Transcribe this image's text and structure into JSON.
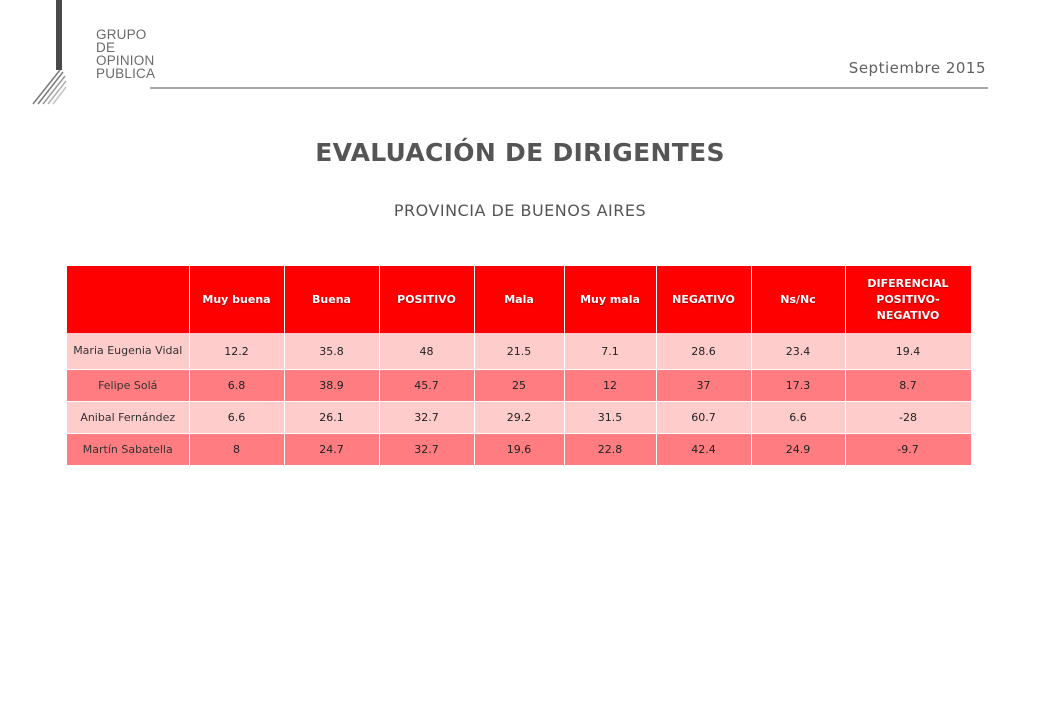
{
  "logo": {
    "lines": [
      "GRUPO",
      "DE",
      "OPINION",
      "PUBLICA"
    ]
  },
  "date": "Septiembre 2015",
  "title": "EVALUACIÓN DE DIRIGENTES",
  "subtitle": "PROVINCIA DE BUENOS AIRES",
  "table": {
    "headers": [
      "",
      "Muy buena",
      "Buena",
      "POSITIVO",
      "Mala",
      "Muy mala",
      "NEGATIVO",
      "Ns/Nc",
      "DIFERENCIAL POSITIVO-NEGATIVO"
    ],
    "rows": [
      {
        "name": "Maria Eugenia Vidal",
        "values": [
          "12.2",
          "35.8",
          "48",
          "21.5",
          "7.1",
          "28.6",
          "23.4",
          "19.4"
        ]
      },
      {
        "name": "Felipe Solá",
        "values": [
          "6.8",
          "38.9",
          "45.7",
          "25",
          "12",
          "37",
          "17.3",
          "8.7"
        ]
      },
      {
        "name": "Anibal Fernández",
        "values": [
          "6.6",
          "26.1",
          "32.7",
          "29.2",
          "31.5",
          "60.7",
          "6.6",
          "-28"
        ]
      },
      {
        "name": "Martín Sabatella",
        "values": [
          "8",
          "24.7",
          "32.7",
          "19.6",
          "22.8",
          "42.4",
          "24.9",
          "-9.7"
        ]
      }
    ]
  },
  "colors": {
    "header": "#ff0000",
    "row_light": "#ffcccc",
    "row_dark": "#ff7c80"
  }
}
